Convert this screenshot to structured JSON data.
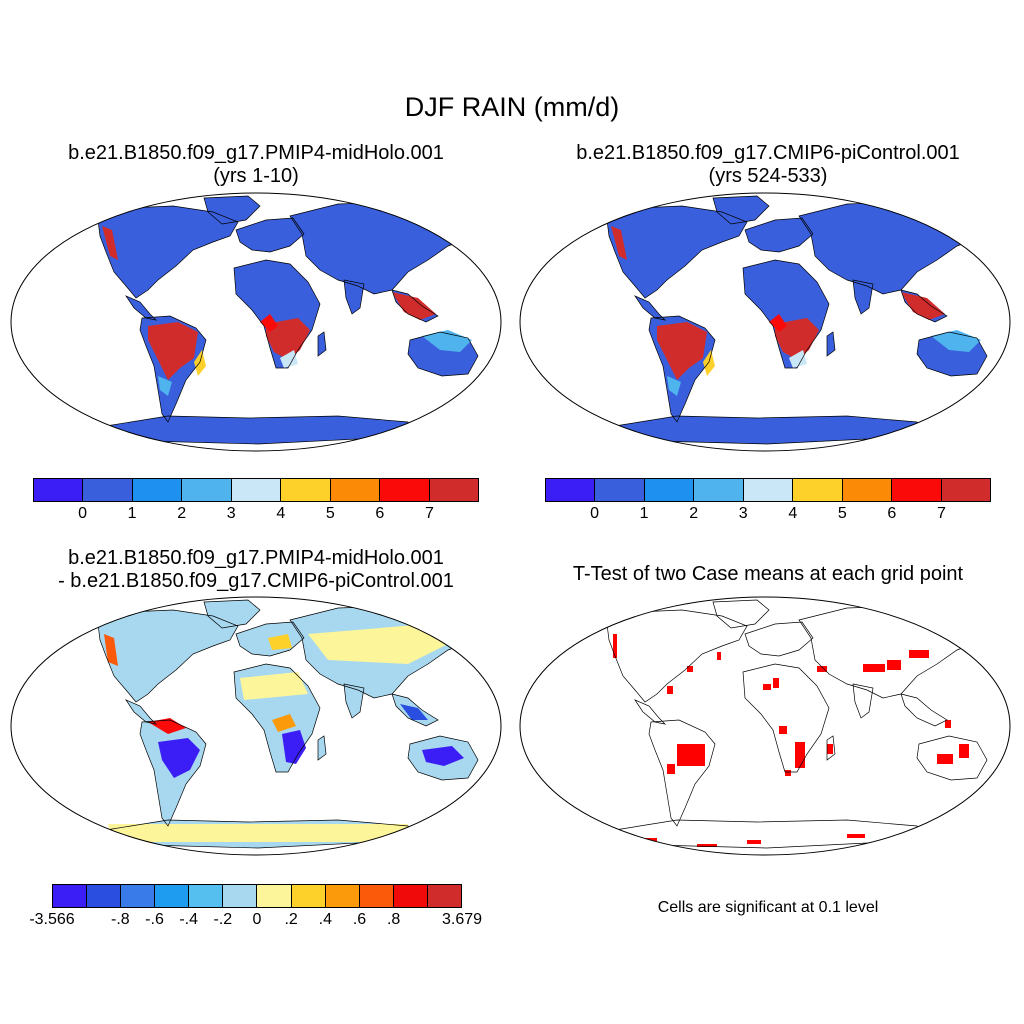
{
  "figure": {
    "title": "DJF RAIN (mm/d)"
  },
  "panels": [
    {
      "id": "midholo",
      "title_line1": "b.e21.B1850.f09_g17.PMIP4-midHolo.001",
      "title_line2": "(yrs 1-10)",
      "colorbar": {
        "colors": [
          "#3b1ef5",
          "#3a5fdc",
          "#1e90f0",
          "#4fb4ee",
          "#c9e7f7",
          "#fdd02a",
          "#fb8b07",
          "#fb0a0a",
          "#d02c2c"
        ],
        "ticks": [
          "0",
          "1",
          "2",
          "3",
          "4",
          "5",
          "6",
          "7"
        ]
      }
    },
    {
      "id": "picontrol",
      "title_line1": "b.e21.B1850.f09_g17.CMIP6-piControl.001",
      "title_line2": "(yrs 524-533)",
      "colorbar": {
        "colors": [
          "#3b1ef5",
          "#3a5fdc",
          "#1e90f0",
          "#4fb4ee",
          "#c9e7f7",
          "#fdd02a",
          "#fb8b07",
          "#fb0a0a",
          "#d02c2c"
        ],
        "ticks": [
          "0",
          "1",
          "2",
          "3",
          "4",
          "5",
          "6",
          "7"
        ]
      }
    },
    {
      "id": "difference",
      "title_line1": "b.e21.B1850.f09_g17.PMIP4-midHolo.001",
      "title_line2": "- b.e21.B1850.f09_g17.CMIP6-piControl.001",
      "colorbar": {
        "colors": [
          "#3b1ef5",
          "#2a4fe0",
          "#3a7bea",
          "#1e9cf0",
          "#55bff0",
          "#a8d8f0",
          "#fdf59a",
          "#fed02a",
          "#fb9a0a",
          "#fb5a0a",
          "#f00a0a",
          "#d02c2c"
        ],
        "ticks": [
          "-3.566",
          "-.8",
          "-.6",
          "-.4",
          "-.2",
          "0",
          ".2",
          ".4",
          ".6",
          ".8",
          "3.679"
        ]
      }
    },
    {
      "id": "ttest",
      "title_line1": "T-Test of two Case means at each grid point",
      "note": "Cells are significant at 0.1 level"
    }
  ],
  "colors": {
    "ocean": "#ffffff",
    "land_outline": "#000000",
    "dry": "#3a5fdc",
    "wet": "#d02c2c",
    "significant": "#ff0000"
  }
}
